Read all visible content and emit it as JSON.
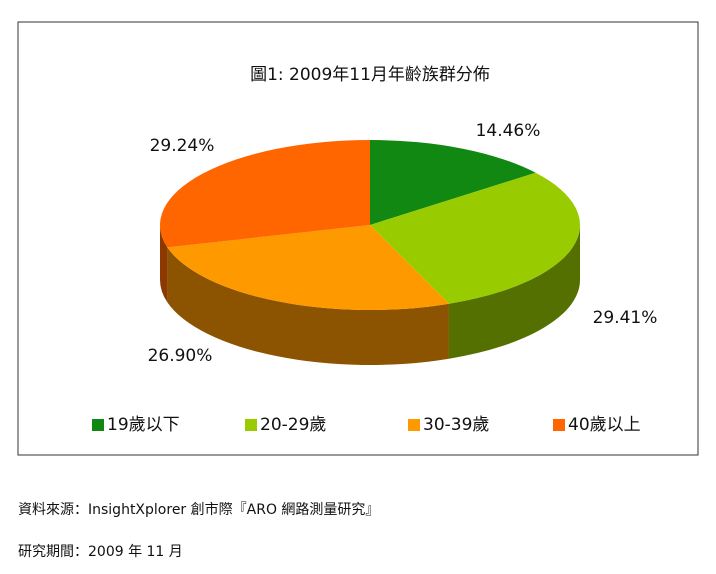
{
  "chart_data": {
    "type": "pie3d",
    "title": "圖1: 2009年11月年齡族群分佈",
    "categories": [
      "19歲以下",
      "20-29歲",
      "30-39歲",
      "40歲以上"
    ],
    "values": [
      14.46,
      29.41,
      26.9,
      29.24
    ],
    "value_labels": [
      "14.46%",
      "29.41%",
      "26.90%",
      "29.24%"
    ],
    "colors": [
      "#118811",
      "#99cc00",
      "#ff9900",
      "#ff6600"
    ],
    "legend": "bottom"
  },
  "source": "資料來源：InsightXplorer 創市際『ARO 網路測量研究』",
  "period": "研究期間：2009 年 11 月"
}
